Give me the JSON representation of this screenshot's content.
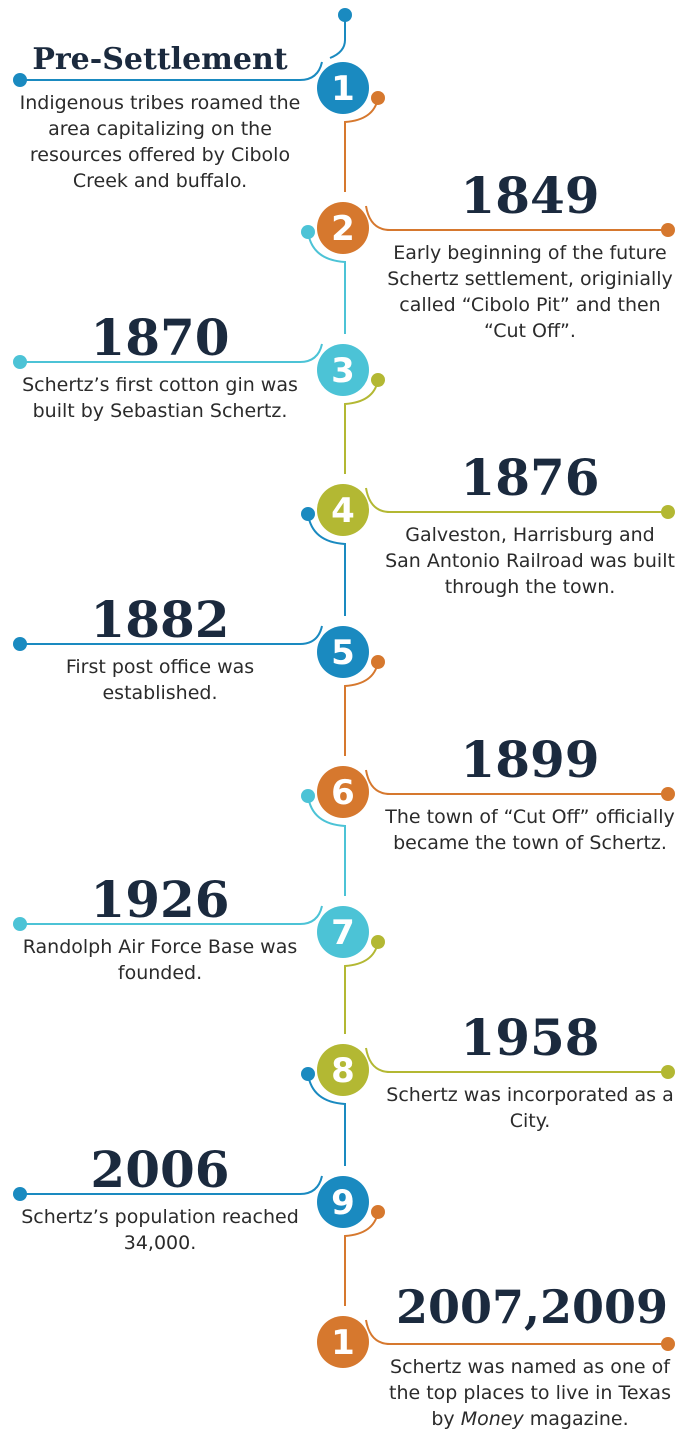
{
  "items": [
    {
      "number": "1",
      "title": "Pre-Settlement",
      "description": [
        "Indigenous tribes roamed the area capitalizing on the resources offered by Cibolo Creek and buffalo."
      ]
    },
    {
      "number": "2",
      "title": "1849",
      "description": [
        "Early beginning of the future Schertz settlement, originially called “Cibolo Pit” and then “Cut Off”."
      ]
    },
    {
      "number": "3",
      "title": "1870",
      "description": [
        "Schertz’s first cotton gin was built by Sebastian Schertz."
      ]
    },
    {
      "number": "4",
      "title": "1876",
      "description": [
        "Galveston, Harrisburg and San Antonio Railroad was built through the town."
      ]
    },
    {
      "number": "5",
      "title": "1882",
      "description": [
        "First post office was established."
      ]
    },
    {
      "number": "6",
      "title": "1899",
      "description": [
        "The town of “Cut Off” officially became the town of Schertz."
      ]
    },
    {
      "number": "7",
      "title": "1926",
      "description": [
        "Randolph Air Force Base was founded."
      ]
    },
    {
      "number": "8",
      "title": "1958",
      "description": [
        "Schertz was incorporated as a City."
      ]
    },
    {
      "number": "9",
      "title": "2006",
      "description": [
        "Schertz’s population reached 34,000."
      ]
    },
    {
      "number": "1",
      "title": "2007,2009",
      "description": [
        "Schertz was named as one of the top places to live in Texas by ",
        "Money",
        " magazine."
      ],
      "italic": 1
    }
  ]
}
